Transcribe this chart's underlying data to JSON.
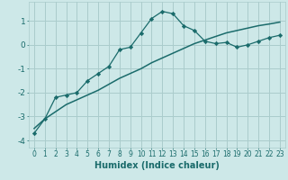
{
  "title": "",
  "xlabel": "Humidex (Indice chaleur)",
  "ylabel": "",
  "bg_color": "#cde8e8",
  "grid_color": "#aacccc",
  "line_color": "#1a6b6b",
  "marker_color": "#1a6b6b",
  "xlim": [
    -0.5,
    23.5
  ],
  "ylim": [
    -4.3,
    1.8
  ],
  "xticks": [
    0,
    1,
    2,
    3,
    4,
    5,
    6,
    7,
    8,
    9,
    10,
    11,
    12,
    13,
    14,
    15,
    16,
    17,
    18,
    19,
    20,
    21,
    22,
    23
  ],
  "yticks": [
    -4,
    -3,
    -2,
    -1,
    0,
    1
  ],
  "curve1_x": [
    0,
    1,
    2,
    3,
    4,
    5,
    6,
    7,
    8,
    9,
    10,
    11,
    12,
    13,
    14,
    15,
    16,
    17,
    18,
    19,
    20,
    21,
    22,
    23
  ],
  "curve1_y": [
    -3.7,
    -3.1,
    -2.2,
    -2.1,
    -2.0,
    -1.5,
    -1.2,
    -0.9,
    -0.2,
    -0.1,
    0.5,
    1.1,
    1.4,
    1.3,
    0.8,
    0.6,
    0.15,
    0.05,
    0.1,
    -0.1,
    0.0,
    0.15,
    0.3,
    0.4
  ],
  "curve2_x": [
    0,
    1,
    2,
    3,
    4,
    5,
    6,
    7,
    8,
    9,
    10,
    11,
    12,
    13,
    14,
    15,
    16,
    17,
    18,
    19,
    20,
    21,
    22,
    23
  ],
  "curve2_y": [
    -3.5,
    -3.1,
    -2.8,
    -2.5,
    -2.3,
    -2.1,
    -1.9,
    -1.65,
    -1.4,
    -1.2,
    -1.0,
    -0.75,
    -0.55,
    -0.35,
    -0.15,
    0.05,
    0.2,
    0.35,
    0.5,
    0.6,
    0.7,
    0.8,
    0.87,
    0.95
  ],
  "tick_fontsize": 5.5,
  "label_fontsize": 7.0
}
